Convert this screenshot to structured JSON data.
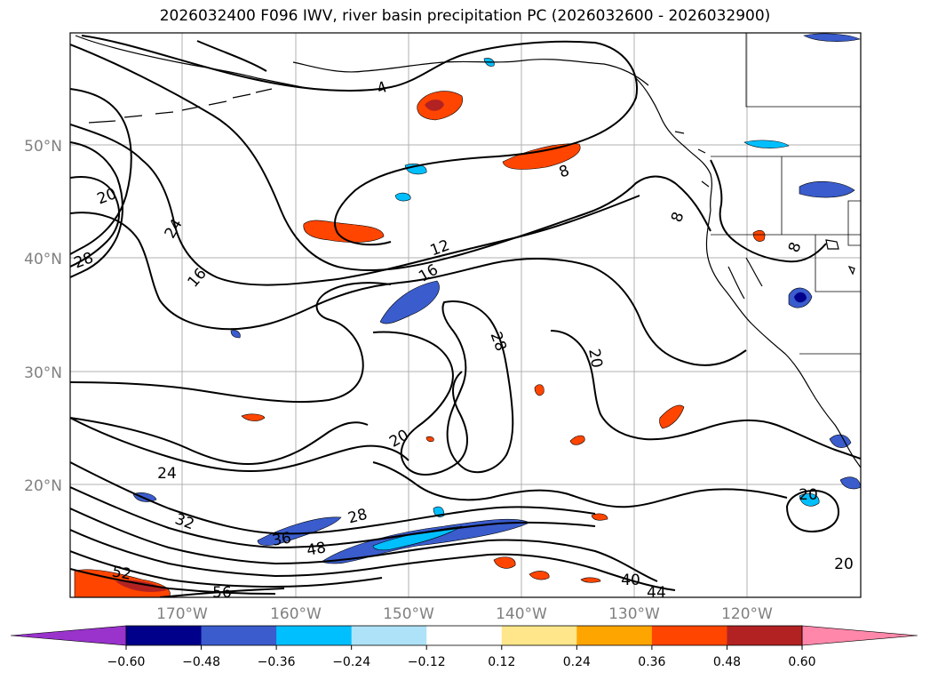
{
  "title": "2026032400 F096 IWV, river basin precipitation PC (2026032600 - 2026032900)",
  "map": {
    "lat_labels": [
      "50°N",
      "40°N",
      "30°N",
      "20°N"
    ],
    "lon_labels": [
      "170°W",
      "160°W",
      "150°W",
      "140°W",
      "130°W",
      "120°W"
    ],
    "contour_labels": [
      "4",
      "8",
      "8",
      "8",
      "12",
      "16",
      "16",
      "20",
      "20",
      "20",
      "20",
      "20",
      "24",
      "24",
      "28",
      "28",
      "28",
      "32",
      "36",
      "40",
      "44",
      "48",
      "52",
      "56"
    ]
  },
  "colorbar": {
    "ticks": [
      "−0.60",
      "−0.48",
      "−0.36",
      "−0.24",
      "−0.12",
      "0.12",
      "0.24",
      "0.36",
      "0.48",
      "0.60"
    ],
    "colors": {
      "under": "#9933cc",
      "bins": [
        "#00008b",
        "#3a5ccc",
        "#00bfff",
        "#aee2f8",
        "#ffffff",
        "#ffe68a",
        "#ffa500",
        "#ff4500",
        "#b22222"
      ],
      "over": "#ff88aa"
    }
  },
  "colors": {
    "grid": "#b0b0b0",
    "contour": "#000000",
    "coast": "#000000"
  }
}
